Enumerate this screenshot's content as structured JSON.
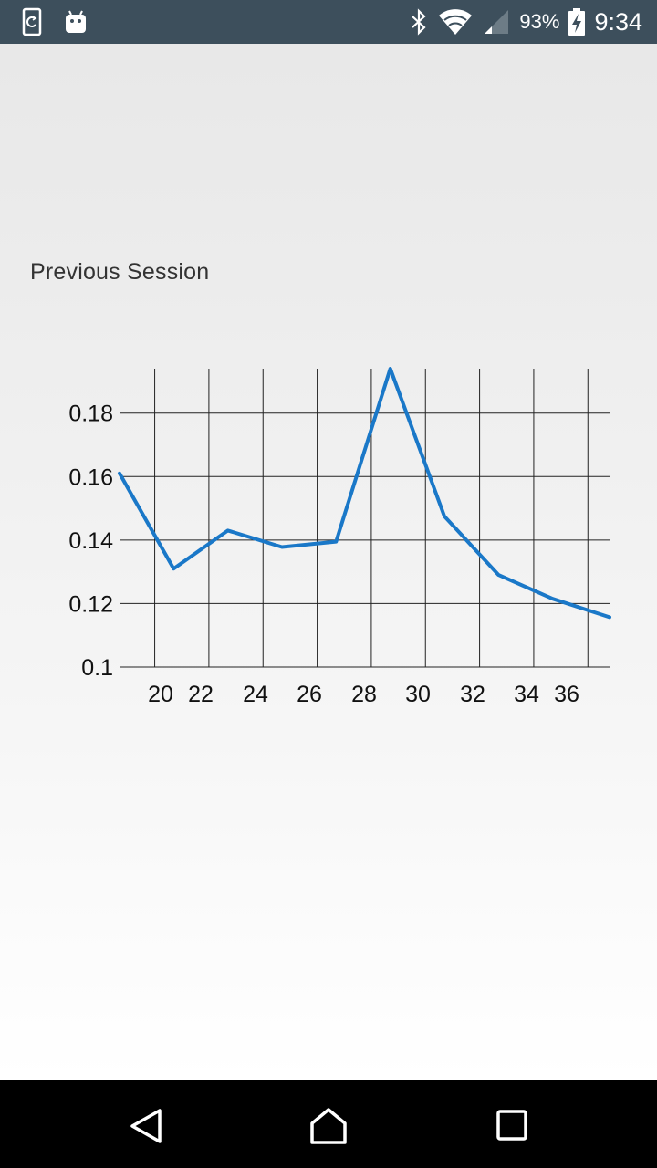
{
  "status_bar": {
    "battery_percent": "93%",
    "time": "9:34",
    "icons": [
      "sync-app-icon",
      "android-icon",
      "bluetooth-icon",
      "wifi-icon",
      "signal-icon",
      "battery-charging-icon"
    ]
  },
  "page": {
    "section_title": "Previous Session"
  },
  "chart_data": {
    "type": "line",
    "title": "",
    "xlabel": "",
    "ylabel": "",
    "x_ticks": [
      "20",
      "22",
      "24",
      "26",
      "28",
      "30",
      "32",
      "34",
      "36"
    ],
    "y_ticks": [
      "0.1",
      "0.12",
      "0.14",
      "0.16",
      "0.18"
    ],
    "xlim": [
      18.7,
      36.8
    ],
    "ylim": [
      0.1,
      0.194
    ],
    "grid": true,
    "series": [
      {
        "color": "#1a78c8",
        "x": [
          18.7,
          20.7,
          22.7,
          24.7,
          26.7,
          28.7,
          30.7,
          32.7,
          34.7,
          36.8
        ],
        "y": [
          0.161,
          0.131,
          0.143,
          0.1378,
          0.1395,
          0.194,
          0.1475,
          0.129,
          0.1215,
          0.1157
        ]
      }
    ]
  },
  "nav_bar": {
    "buttons": [
      "back",
      "home",
      "recents"
    ]
  }
}
